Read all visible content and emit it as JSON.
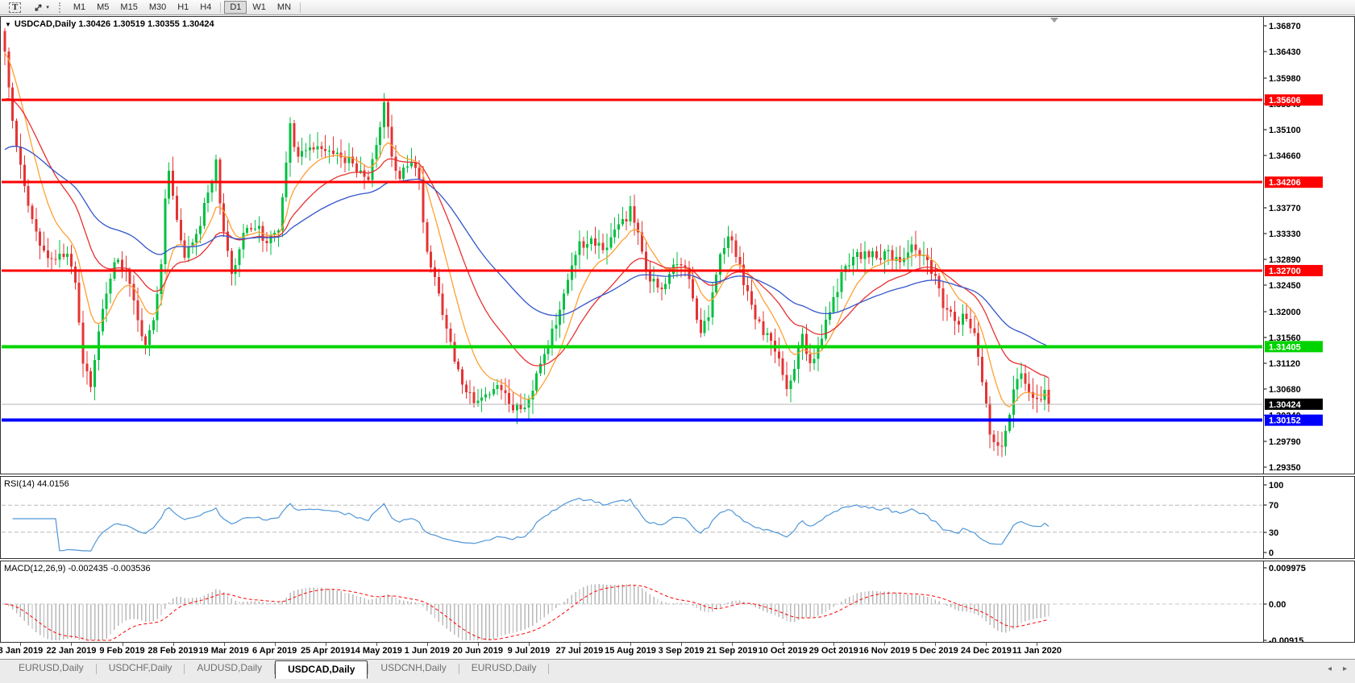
{
  "toolbar": {
    "text_tool_label": "T",
    "timeframes": [
      "M1",
      "M5",
      "M15",
      "M30",
      "H1",
      "H4",
      "D1",
      "W1",
      "MN"
    ],
    "active_timeframe": "D1"
  },
  "chart": {
    "symbol_title": "USDCAD,Daily",
    "open": "1.30426",
    "high": "1.30519",
    "low": "1.30355",
    "close": "1.30424",
    "ohlc_text": "1.30426 1.30519 1.30355 1.30424",
    "price_axis_ticks": [
      "1.36870",
      "1.36430",
      "1.35980",
      "1.35540",
      "1.35100",
      "1.34660",
      "1.33770",
      "1.33330",
      "1.32890",
      "1.32450",
      "1.32000",
      "1.31560",
      "1.31120",
      "1.30680",
      "1.30240",
      "1.29790",
      "1.29350"
    ],
    "current_price_label": "1.30424"
  },
  "rsi": {
    "label": "RSI(14) 44.0156",
    "axis_ticks": [
      "100",
      "70",
      "30",
      "0"
    ],
    "level_lines": [
      70,
      30
    ]
  },
  "macd": {
    "label": "MACD(12,26,9) -0.002435 -0.003536",
    "axis_ticks": [
      "0.009975",
      "0.00",
      "-0.00915"
    ]
  },
  "date_axis": [
    "3 Jan 2019",
    "22 Jan 2019",
    "9 Feb 2019",
    "28 Feb 2019",
    "19 Mar 2019",
    "6 Apr 2019",
    "25 Apr 2019",
    "14 May 2019",
    "1 Jun 2019",
    "20 Jun 2019",
    "9 Jul 2019",
    "27 Jul 2019",
    "15 Aug 2019",
    "3 Sep 2019",
    "21 Sep 2019",
    "10 Oct 2019",
    "29 Oct 2019",
    "16 Nov 2019",
    "5 Dec 2019",
    "24 Dec 2019",
    "11 Jan 2020"
  ],
  "tabs": {
    "items": [
      "EURUSD,Daily",
      "USDCHF,Daily",
      "AUDUSD,Daily",
      "USDCAD,Daily",
      "USDCNH,Daily",
      "EURUSD,Daily"
    ],
    "active_index": 3,
    "nav_left": "◂",
    "nav_right": "▸"
  },
  "icons": {
    "symbol_dropdown": "▼",
    "toolbar_caret": "▾"
  },
  "colors": {
    "candle_up": "#00c041",
    "candle_down": "#e43434",
    "level_red": "#ff0000",
    "level_green": "#00d400",
    "level_blue": "#0000ff",
    "current_price_line": "#b4b4b4",
    "current_price_label_bg": "#000000",
    "rsi_line": "#4f96d8",
    "macd_histogram": "#b8b8b8",
    "macd_signal": "#ff0000"
  },
  "chart_data": {
    "type": "candlestick",
    "symbol": "USDCAD",
    "timeframe": "Daily",
    "visible_ohlc": {
      "open": 1.30426,
      "high": 1.30519,
      "low": 1.30355,
      "close": 1.30424
    },
    "candle_count": 268,
    "y_axis_range": [
      1.2927,
      1.3703
    ],
    "last_close": 1.30424,
    "current_price": 1.30424,
    "sr_levels": [
      {
        "label": "1.35606",
        "price": 1.35606,
        "color": "#ff0000",
        "width": 3,
        "type": "resistance"
      },
      {
        "label": "1.34206",
        "price": 1.34206,
        "color": "#ff0000",
        "width": 3,
        "type": "resistance"
      },
      {
        "label": "1.32700",
        "price": 1.327,
        "color": "#ff0000",
        "width": 3,
        "type": "resistance"
      },
      {
        "label": "1.31405",
        "price": 1.31405,
        "color": "#00d400",
        "width": 4,
        "type": "support"
      },
      {
        "label": "1.30152",
        "price": 1.30152,
        "color": "#0000ff",
        "width": 4,
        "type": "support"
      }
    ],
    "moving_averages": [
      {
        "name": "fast-ma",
        "period": 10,
        "color": "#ffa033",
        "init": 1.364
      },
      {
        "name": "medium-ma",
        "period": 25,
        "color": "#e83030",
        "init": 1.3555
      },
      {
        "name": "slow-ma",
        "period": 55,
        "color": "#3355cc",
        "init": 1.347
      }
    ],
    "rsi": {
      "period": 14,
      "value": 44.0156,
      "range": [
        0,
        100
      ],
      "levels": [
        70,
        30
      ]
    },
    "macd": {
      "fast": 12,
      "slow": 26,
      "signal": 9,
      "macd_value": -0.002435,
      "signal_value": -0.003536,
      "range": [
        -0.00915,
        0.009975
      ]
    },
    "price_waypoints": [
      [
        0,
        1.364
      ],
      [
        1,
        1.3575
      ],
      [
        2,
        1.352
      ],
      [
        4,
        1.3452
      ],
      [
        6,
        1.3385
      ],
      [
        8,
        1.333
      ],
      [
        12,
        1.3288
      ],
      [
        16,
        1.3302
      ],
      [
        18,
        1.3242
      ],
      [
        20,
        1.312
      ],
      [
        22,
        1.3076
      ],
      [
        25,
        1.32
      ],
      [
        28,
        1.329
      ],
      [
        31,
        1.3272
      ],
      [
        34,
        1.318
      ],
      [
        36,
        1.3146
      ],
      [
        38,
        1.318
      ],
      [
        40,
        1.328
      ],
      [
        41,
        1.34
      ],
      [
        42,
        1.3442
      ],
      [
        44,
        1.3352
      ],
      [
        46,
        1.329
      ],
      [
        49,
        1.333
      ],
      [
        52,
        1.34
      ],
      [
        54,
        1.3452
      ],
      [
        56,
        1.333
      ],
      [
        58,
        1.3262
      ],
      [
        61,
        1.333
      ],
      [
        64,
        1.3345
      ],
      [
        67,
        1.3322
      ],
      [
        70,
        1.334
      ],
      [
        72,
        1.346
      ],
      [
        73,
        1.3516
      ],
      [
        75,
        1.3462
      ],
      [
        78,
        1.3482
      ],
      [
        82,
        1.347
      ],
      [
        86,
        1.3466
      ],
      [
        90,
        1.3446
      ],
      [
        93,
        1.343
      ],
      [
        96,
        1.3512
      ],
      [
        97,
        1.3552
      ],
      [
        99,
        1.3462
      ],
      [
        101,
        1.343
      ],
      [
        104,
        1.3456
      ],
      [
        106,
        1.342
      ],
      [
        108,
        1.33
      ],
      [
        111,
        1.323
      ],
      [
        114,
        1.314
      ],
      [
        117,
        1.3072
      ],
      [
        120,
        1.3052
      ],
      [
        123,
        1.3062
      ],
      [
        126,
        1.3076
      ],
      [
        129,
        1.3042
      ],
      [
        132,
        1.3032
      ],
      [
        135,
        1.3072
      ],
      [
        138,
        1.313
      ],
      [
        141,
        1.318
      ],
      [
        144,
        1.3262
      ],
      [
        147,
        1.3312
      ],
      [
        150,
        1.3322
      ],
      [
        153,
        1.3302
      ],
      [
        156,
        1.3342
      ],
      [
        159,
        1.3362
      ],
      [
        160,
        1.3386
      ],
      [
        162,
        1.333
      ],
      [
        165,
        1.3252
      ],
      [
        168,
        1.3242
      ],
      [
        171,
        1.3282
      ],
      [
        174,
        1.3272
      ],
      [
        176,
        1.3222
      ],
      [
        178,
        1.3162
      ],
      [
        180,
        1.3192
      ],
      [
        183,
        1.3292
      ],
      [
        185,
        1.3332
      ],
      [
        187,
        1.3302
      ],
      [
        189,
        1.3252
      ],
      [
        192,
        1.3182
      ],
      [
        195,
        1.3162
      ],
      [
        198,
        1.3112
      ],
      [
        200,
        1.3072
      ],
      [
        202,
        1.3102
      ],
      [
        204,
        1.3162
      ],
      [
        206,
        1.3112
      ],
      [
        208,
        1.3142
      ],
      [
        211,
        1.3202
      ],
      [
        214,
        1.3262
      ],
      [
        217,
        1.3292
      ],
      [
        220,
        1.3302
      ],
      [
        223,
        1.3292
      ],
      [
        226,
        1.3302
      ],
      [
        229,
        1.3282
      ],
      [
        232,
        1.3312
      ],
      [
        235,
        1.3292
      ],
      [
        238,
        1.3252
      ],
      [
        240,
        1.3212
      ],
      [
        243,
        1.3182
      ],
      [
        246,
        1.3192
      ],
      [
        248,
        1.3162
      ],
      [
        250,
        1.3082
      ],
      [
        252,
        1.2992
      ],
      [
        254,
        1.2966
      ],
      [
        256,
        1.2992
      ],
      [
        258,
        1.3062
      ],
      [
        260,
        1.3096
      ],
      [
        262,
        1.3062
      ],
      [
        264,
        1.3052
      ],
      [
        266,
        1.306
      ],
      [
        267,
        1.30424
      ]
    ]
  }
}
